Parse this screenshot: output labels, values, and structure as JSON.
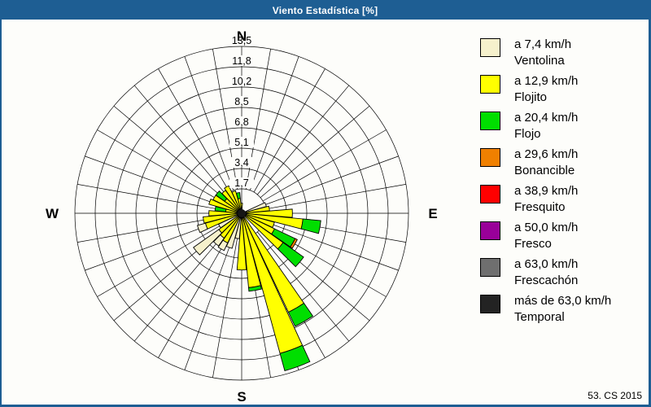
{
  "window": {
    "title": "Viento Estadística [%]",
    "footer": "53. CS 2015",
    "accent_color": "#1E5E93",
    "background_color": "#FDFDFA"
  },
  "legend": {
    "items": [
      {
        "speed": "a 7,4 km/h",
        "name": "Ventolina",
        "color": "#F6F1CC",
        "class": "ventolina"
      },
      {
        "speed": "a 12,9 km/h",
        "name": "Flojito",
        "color": "#FFFF00",
        "class": "flojito"
      },
      {
        "speed": "a 20,4 km/h",
        "name": "Flojo",
        "color": "#00DE00",
        "class": "flojo"
      },
      {
        "speed": "a 29,6 km/h",
        "name": "Bonancible",
        "color": "#F08000",
        "class": "bonancible"
      },
      {
        "speed": "a 38,9 km/h",
        "name": "Fresquito",
        "color": "#FF0000",
        "class": "fresquito"
      },
      {
        "speed": "a 50,0 km/h",
        "name": "Fresco",
        "color": "#990099",
        "class": "fresco"
      },
      {
        "speed": "a 63,0 km/h",
        "name": "Frescachón",
        "color": "#6F6F6F",
        "class": "frescachon"
      },
      {
        "speed": "más de 63,0 km/h",
        "name": "Temporal",
        "color": "#232323",
        "class": "temporal"
      }
    ]
  },
  "chart_data": {
    "type": "wind-rose",
    "unit": "%",
    "max_value": 13.5,
    "ring_value_step": 1.7,
    "radial_ticks": [
      "1,7",
      "3,4",
      "5,1",
      "6,8",
      "8,5",
      "10,2",
      "11,8",
      "13,5"
    ],
    "compass": {
      "n": "N",
      "e": "E",
      "s": "S",
      "w": "W"
    },
    "sector_width_deg": 10,
    "grid": {
      "rings": 8,
      "spoke_step_deg": 10
    },
    "class_colors": {
      "ventolina": "#F6F1CC",
      "flojito": "#FFFF00",
      "flojo": "#00DE00",
      "bonancible": "#F08000",
      "fresquito": "#FF0000",
      "fresco": "#990099",
      "frescachon": "#6F6F6F",
      "temporal": "#232323"
    },
    "sectors": [
      {
        "dir": 0,
        "segments": [
          {
            "class": "flojito",
            "value": 0.5
          }
        ]
      },
      {
        "dir": 70,
        "segments": [
          {
            "class": "ventolina",
            "value": 1.8
          }
        ]
      },
      {
        "dir": 80,
        "segments": [
          {
            "class": "flojito",
            "value": 2.0
          }
        ]
      },
      {
        "dir": 90,
        "segments": [
          {
            "class": "flojito",
            "value": 3.9
          }
        ]
      },
      {
        "dir": 100,
        "segments": [
          {
            "class": "flojito",
            "value": 4.8
          },
          {
            "class": "flojo",
            "value": 1.5
          }
        ]
      },
      {
        "dir": 110,
        "segments": [
          {
            "class": "flojito",
            "value": 2.5
          }
        ]
      },
      {
        "dir": 120,
        "segments": [
          {
            "class": "flojito",
            "value": 2.7
          },
          {
            "class": "flojo",
            "value": 1.9
          },
          {
            "class": "bonancible",
            "value": 0.2
          }
        ]
      },
      {
        "dir": 130,
        "segments": [
          {
            "class": "flojito",
            "value": 3.9
          },
          {
            "class": "flojo",
            "value": 2.1
          }
        ]
      },
      {
        "dir": 150,
        "segments": [
          {
            "class": "flojito",
            "value": 8.8
          },
          {
            "class": "flojo",
            "value": 1.3
          }
        ]
      },
      {
        "dir": 160,
        "segments": [
          {
            "class": "flojito",
            "value": 11.8
          },
          {
            "class": "flojo",
            "value": 1.5
          }
        ]
      },
      {
        "dir": 170,
        "segments": [
          {
            "class": "flojito",
            "value": 5.9
          },
          {
            "class": "flojo",
            "value": 0.3
          }
        ]
      },
      {
        "dir": 180,
        "segments": [
          {
            "class": "flojito",
            "value": 4.4
          }
        ]
      },
      {
        "dir": 190,
        "segments": [
          {
            "class": "ventolina",
            "value": 1.8
          }
        ]
      },
      {
        "dir": 200,
        "segments": [
          {
            "class": "ventolina",
            "value": 2.7
          }
        ]
      },
      {
        "dir": 210,
        "segments": [
          {
            "class": "flojito",
            "value": 2.4
          },
          {
            "class": "ventolina",
            "value": 0.7
          }
        ]
      },
      {
        "dir": 220,
        "segments": [
          {
            "class": "flojito",
            "value": 2.2
          },
          {
            "class": "ventolina",
            "value": 0.8
          }
        ]
      },
      {
        "dir": 230,
        "segments": [
          {
            "class": "flojito",
            "value": 2.0
          },
          {
            "class": "ventolina",
            "value": 2.6
          }
        ]
      },
      {
        "dir": 240,
        "segments": [
          {
            "class": "ventolina",
            "value": 1.8
          }
        ]
      },
      {
        "dir": 250,
        "segments": [
          {
            "class": "flojito",
            "value": 2.8
          },
          {
            "class": "ventolina",
            "value": 0.7
          }
        ]
      },
      {
        "dir": 260,
        "segments": [
          {
            "class": "flojito",
            "value": 2.9
          }
        ]
      },
      {
        "dir": 270,
        "segments": [
          {
            "class": "flojito",
            "value": 2.4
          }
        ]
      },
      {
        "dir": 280,
        "segments": [
          {
            "class": "flojito",
            "value": 1.0
          },
          {
            "class": "flojo",
            "value": 0.9
          }
        ]
      },
      {
        "dir": 290,
        "segments": [
          {
            "class": "flojito",
            "value": 2.5
          }
        ]
      },
      {
        "dir": 300,
        "segments": [
          {
            "class": "flojito",
            "value": 2.3
          }
        ]
      },
      {
        "dir": 310,
        "segments": [
          {
            "class": "flojito",
            "value": 1.4
          },
          {
            "class": "flojo",
            "value": 0.9
          }
        ]
      },
      {
        "dir": 320,
        "segments": [
          {
            "class": "flojito",
            "value": 2.0
          }
        ]
      },
      {
        "dir": 330,
        "segments": [
          {
            "class": "flojito",
            "value": 2.2
          }
        ]
      },
      {
        "dir": 340,
        "segments": [
          {
            "class": "flojito",
            "value": 1.6
          }
        ]
      },
      {
        "dir": 350,
        "segments": [
          {
            "class": "flojito",
            "value": 0.9
          },
          {
            "class": "flojo",
            "value": 0.5
          }
        ]
      }
    ]
  }
}
